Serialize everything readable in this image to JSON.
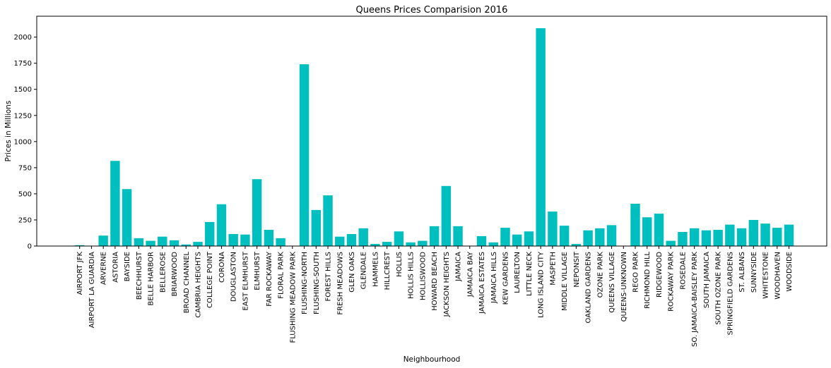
{
  "chart_data": {
    "type": "bar",
    "title": "Queens Prices Comparision 2016",
    "xlabel": "Neighbourhood",
    "ylabel": "Prices in Millions",
    "ylim": [
      0,
      2200
    ],
    "yticks": [
      0,
      250,
      500,
      750,
      1000,
      1250,
      1500,
      1750,
      2000
    ],
    "bar_color": "#00bfbf",
    "grid": false,
    "categories": [
      "AIRPORT JFK",
      "AIRPORT LA GUARDIA",
      "ARVERNE",
      "ASTORIA",
      "BAYSIDE",
      "BEECHHURST",
      "BELLE HARBOR",
      "BELLEROSE",
      "BRIARWOOD",
      "BROAD CHANNEL",
      "CAMBRIA HEIGHTS",
      "COLLEGE POINT",
      "CORONA",
      "DOUGLASTON",
      "EAST ELMHURST",
      "ELMHURST",
      "FAR ROCKAWAY",
      "FLORAL PARK",
      "FLUSHING MEADOW PARK",
      "FLUSHING-NORTH",
      "FLUSHING-SOUTH",
      "FOREST HILLS",
      "FRESH MEADOWS",
      "GLEN OAKS",
      "GLENDALE",
      "HAMMELS",
      "HILLCREST",
      "HOLLIS",
      "HOLLIS HILLS",
      "HOLLISWOOD",
      "HOWARD BEACH",
      "JACKSON HEIGHTS",
      "JAMAICA",
      "JAMAICA BAY",
      "JAMAICA ESTATES",
      "JAMAICA HILLS",
      "KEW GARDENS",
      "LAURELTON",
      "LITTLE NECK",
      "LONG ISLAND CITY",
      "MASPETH",
      "MIDDLE VILLAGE",
      "NEPONSIT",
      "OAKLAND GARDENS",
      "OZONE PARK",
      "QUEENS VILLAGE",
      "QUEENS-UNKNOWN",
      "REGO PARK",
      "RICHMOND HILL",
      "RIDGEWOOD",
      "ROCKAWAY PARK",
      "ROSEDALE",
      "SO. JAMAICA-BAISLEY PARK",
      "SOUTH JAMAICA",
      "SOUTH OZONE PARK",
      "SPRINGFIELD GARDENS",
      "ST. ALBANS",
      "SUNNYSIDE",
      "WHITESTONE",
      "WOODHAVEN",
      "WOODSIDE"
    ],
    "values": [
      8,
      0,
      100,
      815,
      545,
      75,
      50,
      90,
      55,
      15,
      40,
      230,
      400,
      115,
      110,
      640,
      155,
      75,
      0,
      1740,
      345,
      485,
      90,
      115,
      170,
      20,
      40,
      140,
      35,
      50,
      190,
      575,
      190,
      0,
      95,
      35,
      175,
      110,
      140,
      2085,
      330,
      195,
      20,
      150,
      170,
      200,
      0,
      405,
      275,
      310,
      50,
      135,
      170,
      150,
      155,
      205,
      170,
      250,
      215,
      175,
      205
    ]
  }
}
